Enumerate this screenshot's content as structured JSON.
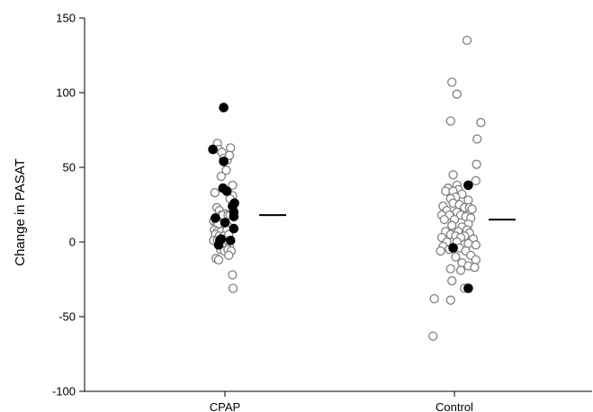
{
  "chart_data": {
    "type": "scatter",
    "title": "",
    "xlabel": "",
    "ylabel": "Change in PASAT",
    "categories": [
      "CPAP",
      "Control"
    ],
    "ylim": [
      -100,
      150
    ],
    "yticks": [
      150,
      100,
      50,
      0,
      -50,
      -100
    ],
    "grid": false,
    "legend": "none",
    "marker_styles": {
      "open": "#808080",
      "filled": "#000000"
    },
    "means": [
      18,
      15
    ],
    "series": [
      {
        "category": "CPAP",
        "open": [
          [
            -0.3,
            66
          ],
          [
            -0.25,
            62
          ],
          [
            -0.12,
            60
          ],
          [
            -0.05,
            56
          ],
          [
            0.1,
            55
          ],
          [
            0.22,
            63
          ],
          [
            0.18,
            58
          ],
          [
            0.05,
            48
          ],
          [
            -0.15,
            44
          ],
          [
            -0.4,
            33
          ],
          [
            0.3,
            38
          ],
          [
            0.3,
            31
          ],
          [
            0.2,
            29
          ],
          [
            -0.32,
            23
          ],
          [
            -0.22,
            21
          ],
          [
            0.02,
            19
          ],
          [
            -0.15,
            18
          ],
          [
            -0.08,
            18
          ],
          [
            0.12,
            18
          ],
          [
            0.2,
            18
          ],
          [
            -0.45,
            14
          ],
          [
            -0.35,
            14
          ],
          [
            -0.28,
            12
          ],
          [
            0.05,
            12
          ],
          [
            0.1,
            11
          ],
          [
            -0.42,
            8
          ],
          [
            -0.3,
            7
          ],
          [
            -0.15,
            7
          ],
          [
            0.08,
            8
          ],
          [
            -0.38,
            5
          ],
          [
            -0.22,
            4
          ],
          [
            -0.05,
            4
          ],
          [
            0.15,
            5
          ],
          [
            -0.45,
            1
          ],
          [
            -0.3,
            1
          ],
          [
            0.02,
            -2
          ],
          [
            -0.1,
            -3
          ],
          [
            0.18,
            -3
          ],
          [
            -0.18,
            -5
          ],
          [
            -0.02,
            -6
          ],
          [
            0.12,
            -5
          ],
          [
            0.25,
            -6
          ],
          [
            0.15,
            -9
          ],
          [
            -0.35,
            -11
          ],
          [
            -0.25,
            -12
          ],
          [
            0.3,
            -22
          ],
          [
            0.32,
            -31
          ]
        ],
        "filled": [
          [
            -0.48,
            62
          ],
          [
            -0.05,
            90
          ],
          [
            -0.05,
            54
          ],
          [
            -0.08,
            36
          ],
          [
            0.08,
            34
          ],
          [
            0.38,
            26
          ],
          [
            0.3,
            24
          ],
          [
            0.35,
            20
          ],
          [
            0.35,
            17
          ],
          [
            -0.38,
            16
          ],
          [
            0.0,
            13
          ],
          [
            0.35,
            9
          ],
          [
            -0.15,
            2
          ],
          [
            -0.2,
            1
          ],
          [
            0.22,
            1
          ],
          [
            -0.25,
            -2
          ]
        ]
      },
      {
        "category": "Control",
        "open": [
          [
            0.5,
            135
          ],
          [
            -0.1,
            107
          ],
          [
            0.1,
            99
          ],
          [
            -0.15,
            81
          ],
          [
            1.05,
            80
          ],
          [
            0.9,
            69
          ],
          [
            0.88,
            52
          ],
          [
            -0.05,
            45
          ],
          [
            0.85,
            41
          ],
          [
            0.1,
            38
          ],
          [
            -0.25,
            36
          ],
          [
            0.15,
            35
          ],
          [
            -0.35,
            34
          ],
          [
            -0.05,
            34
          ],
          [
            0.3,
            32
          ],
          [
            0.05,
            30
          ],
          [
            -0.15,
            29
          ],
          [
            0.55,
            28
          ],
          [
            -0.05,
            26
          ],
          [
            0.2,
            25
          ],
          [
            -0.45,
            24
          ],
          [
            0.4,
            23
          ],
          [
            0.6,
            23
          ],
          [
            0.7,
            22
          ],
          [
            -0.3,
            21
          ],
          [
            0.1,
            20
          ],
          [
            -0.5,
            18
          ],
          [
            -0.2,
            18
          ],
          [
            0.25,
            18
          ],
          [
            0.45,
            17
          ],
          [
            0.65,
            16
          ],
          [
            -0.4,
            15
          ],
          [
            0.0,
            15
          ],
          [
            0.55,
            12
          ],
          [
            -0.1,
            11
          ],
          [
            0.3,
            10
          ],
          [
            0.5,
            8
          ],
          [
            -0.35,
            7
          ],
          [
            0.15,
            7
          ],
          [
            0.6,
            6
          ],
          [
            -0.15,
            5
          ],
          [
            0.05,
            4
          ],
          [
            0.4,
            4
          ],
          [
            -0.5,
            3
          ],
          [
            0.25,
            3
          ],
          [
            0.75,
            2
          ],
          [
            -0.3,
            0
          ],
          [
            0.1,
            0
          ],
          [
            0.55,
            -1
          ],
          [
            0.85,
            -2
          ],
          [
            -0.45,
            -3
          ],
          [
            0.2,
            -4
          ],
          [
            -0.2,
            -5
          ],
          [
            0.45,
            -6
          ],
          [
            -0.55,
            -6
          ],
          [
            0.65,
            -9
          ],
          [
            0.05,
            -10
          ],
          [
            0.85,
            -12
          ],
          [
            0.3,
            -14
          ],
          [
            0.55,
            -16
          ],
          [
            0.8,
            -17
          ],
          [
            -0.15,
            -18
          ],
          [
            0.25,
            -19
          ],
          [
            -0.1,
            -26
          ],
          [
            0.4,
            -31
          ],
          [
            -0.8,
            -38
          ],
          [
            -0.15,
            -39
          ],
          [
            -0.85,
            -63
          ]
        ],
        "filled": [
          [
            0.55,
            38
          ],
          [
            -0.05,
            -4
          ],
          [
            0.55,
            -31
          ]
        ]
      }
    ]
  }
}
